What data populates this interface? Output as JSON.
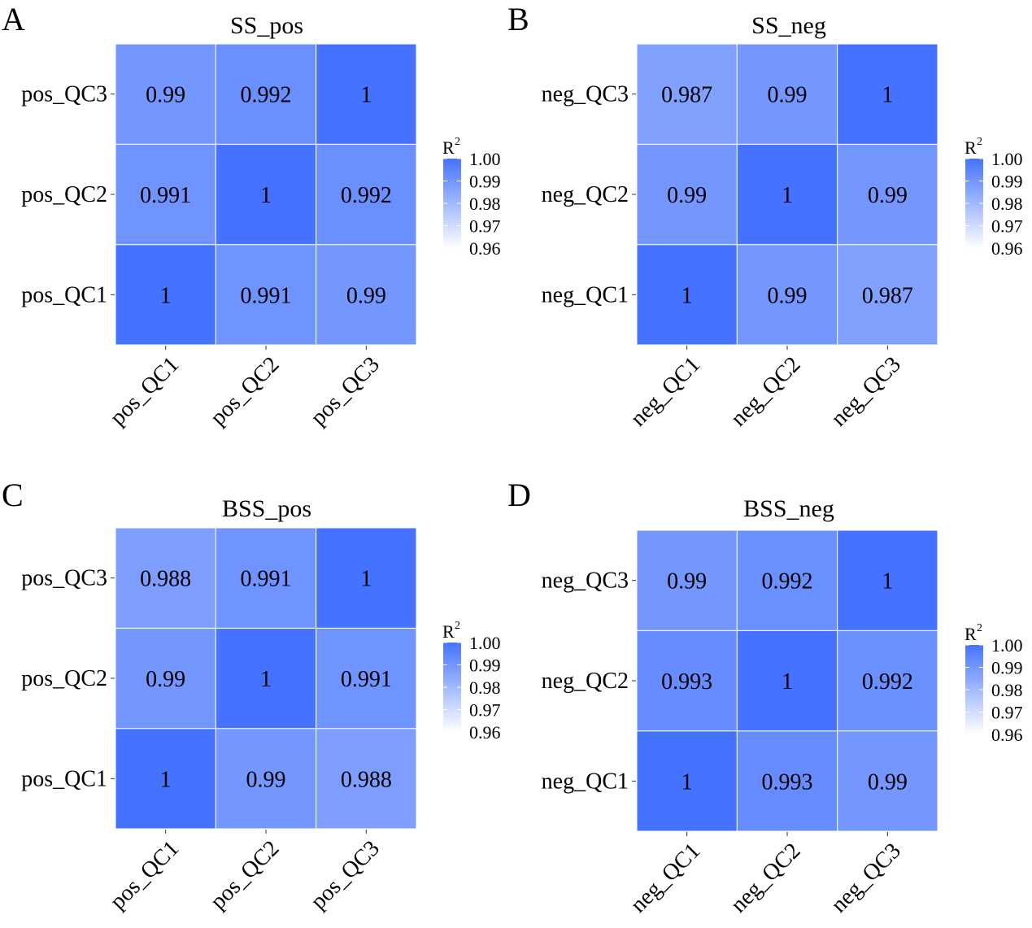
{
  "chart_data": [
    {
      "type": "heatmap",
      "panel_label": "A",
      "title": "SS_pos",
      "x_categories": [
        "pos_QC1",
        "pos_QC2",
        "pos_QC3"
      ],
      "y_categories": [
        "pos_QC1",
        "pos_QC2",
        "pos_QC3"
      ],
      "values": [
        [
          1,
          0.991,
          0.99
        ],
        [
          0.991,
          1,
          0.992
        ],
        [
          0.99,
          0.992,
          1
        ]
      ],
      "cell_labels": [
        [
          "1",
          "0.991",
          "0.99"
        ],
        [
          "0.991",
          "1",
          "0.992"
        ],
        [
          "0.99",
          "0.992",
          "1"
        ]
      ],
      "legend_title": "R",
      "legend_superscript": "2",
      "legend_ticks": [
        "1.00",
        "0.99",
        "0.98",
        "0.97",
        "0.96"
      ],
      "color_range": [
        0.96,
        1.0
      ],
      "legend_position": "right"
    },
    {
      "type": "heatmap",
      "panel_label": "B",
      "title": "SS_neg",
      "x_categories": [
        "neg_QC1",
        "neg_QC2",
        "neg_QC3"
      ],
      "y_categories": [
        "neg_QC1",
        "neg_QC2",
        "neg_QC3"
      ],
      "values": [
        [
          1,
          0.99,
          0.987
        ],
        [
          0.99,
          1,
          0.99
        ],
        [
          0.987,
          0.99,
          1
        ]
      ],
      "cell_labels": [
        [
          "1",
          "0.99",
          "0.987"
        ],
        [
          "0.99",
          "1",
          "0.99"
        ],
        [
          "0.987",
          "0.99",
          "1"
        ]
      ],
      "legend_title": "R",
      "legend_superscript": "2",
      "legend_ticks": [
        "1.00",
        "0.99",
        "0.98",
        "0.97",
        "0.96"
      ],
      "color_range": [
        0.96,
        1.0
      ],
      "legend_position": "right"
    },
    {
      "type": "heatmap",
      "panel_label": "C",
      "title": "BSS_pos",
      "x_categories": [
        "pos_QC1",
        "pos_QC2",
        "pos_QC3"
      ],
      "y_categories": [
        "pos_QC1",
        "pos_QC2",
        "pos_QC3"
      ],
      "values": [
        [
          1,
          0.99,
          0.988
        ],
        [
          0.99,
          1,
          0.991
        ],
        [
          0.988,
          0.991,
          1
        ]
      ],
      "cell_labels": [
        [
          "1",
          "0.99",
          "0.988"
        ],
        [
          "0.99",
          "1",
          "0.991"
        ],
        [
          "0.988",
          "0.991",
          "1"
        ]
      ],
      "legend_title": "R",
      "legend_superscript": "2",
      "legend_ticks": [
        "1.00",
        "0.99",
        "0.98",
        "0.97",
        "0.96"
      ],
      "color_range": [
        0.96,
        1.0
      ],
      "legend_position": "right"
    },
    {
      "type": "heatmap",
      "panel_label": "D",
      "title": "BSS_neg",
      "x_categories": [
        "neg_QC1",
        "neg_QC2",
        "neg_QC3"
      ],
      "y_categories": [
        "neg_QC1",
        "neg_QC2",
        "neg_QC3"
      ],
      "values": [
        [
          1,
          0.993,
          0.99
        ],
        [
          0.993,
          1,
          0.992
        ],
        [
          0.99,
          0.992,
          1
        ]
      ],
      "cell_labels": [
        [
          "1",
          "0.993",
          "0.99"
        ],
        [
          "0.993",
          "1",
          "0.992"
        ],
        [
          "0.99",
          "0.992",
          "1"
        ]
      ],
      "legend_title": "R",
      "legend_superscript": "2",
      "legend_ticks": [
        "1.00",
        "0.99",
        "0.98",
        "0.97",
        "0.96"
      ],
      "color_range": [
        0.96,
        1.0
      ],
      "legend_position": "right"
    }
  ],
  "colors": {
    "high": "#4573FF",
    "low": "#FFFFFF",
    "grid": "#FFFFFF"
  }
}
